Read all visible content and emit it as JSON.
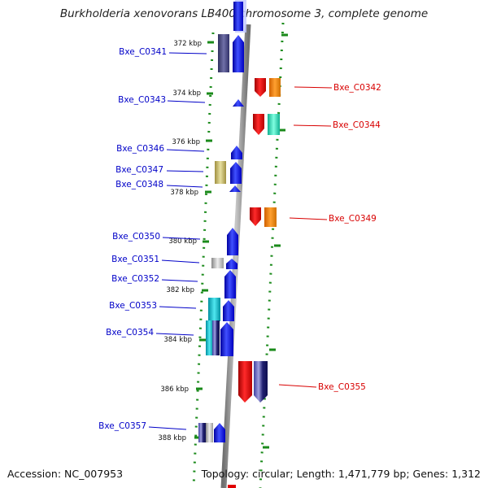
{
  "header": {
    "title": "Burkholderia xenovorans LB400 chromosome 3, complete genome"
  },
  "footer": {
    "accession": "Accession: NC_007953",
    "topology": "Topology: circular; Length: 1,471,779 bp; Genes: 1,312"
  },
  "ticks": [
    "372 kbp",
    "374 kbp",
    "376 kbp",
    "378 kbp",
    "380 kbp",
    "382 kbp",
    "384 kbp",
    "386 kbp",
    "388 kbp"
  ],
  "genes_left": [
    "Bxe_C0341",
    "Bxe_C0343",
    "Bxe_C0346",
    "Bxe_C0347",
    "Bxe_C0348",
    "Bxe_C0350",
    "Bxe_C0351",
    "Bxe_C0352",
    "Bxe_C0353",
    "Bxe_C0354",
    "Bxe_C0357"
  ],
  "genes_right": [
    "Bxe_C0342",
    "Bxe_C0344",
    "Bxe_C0349",
    "Bxe_C0355"
  ],
  "colors": {
    "forward_strand": "#0a14ff",
    "reverse_strand": "#e00000",
    "backbone": "#8a8a8a",
    "dotted_guides": "#1a8a1a",
    "label_left": "#0000c8",
    "label_right": "#d80000"
  }
}
